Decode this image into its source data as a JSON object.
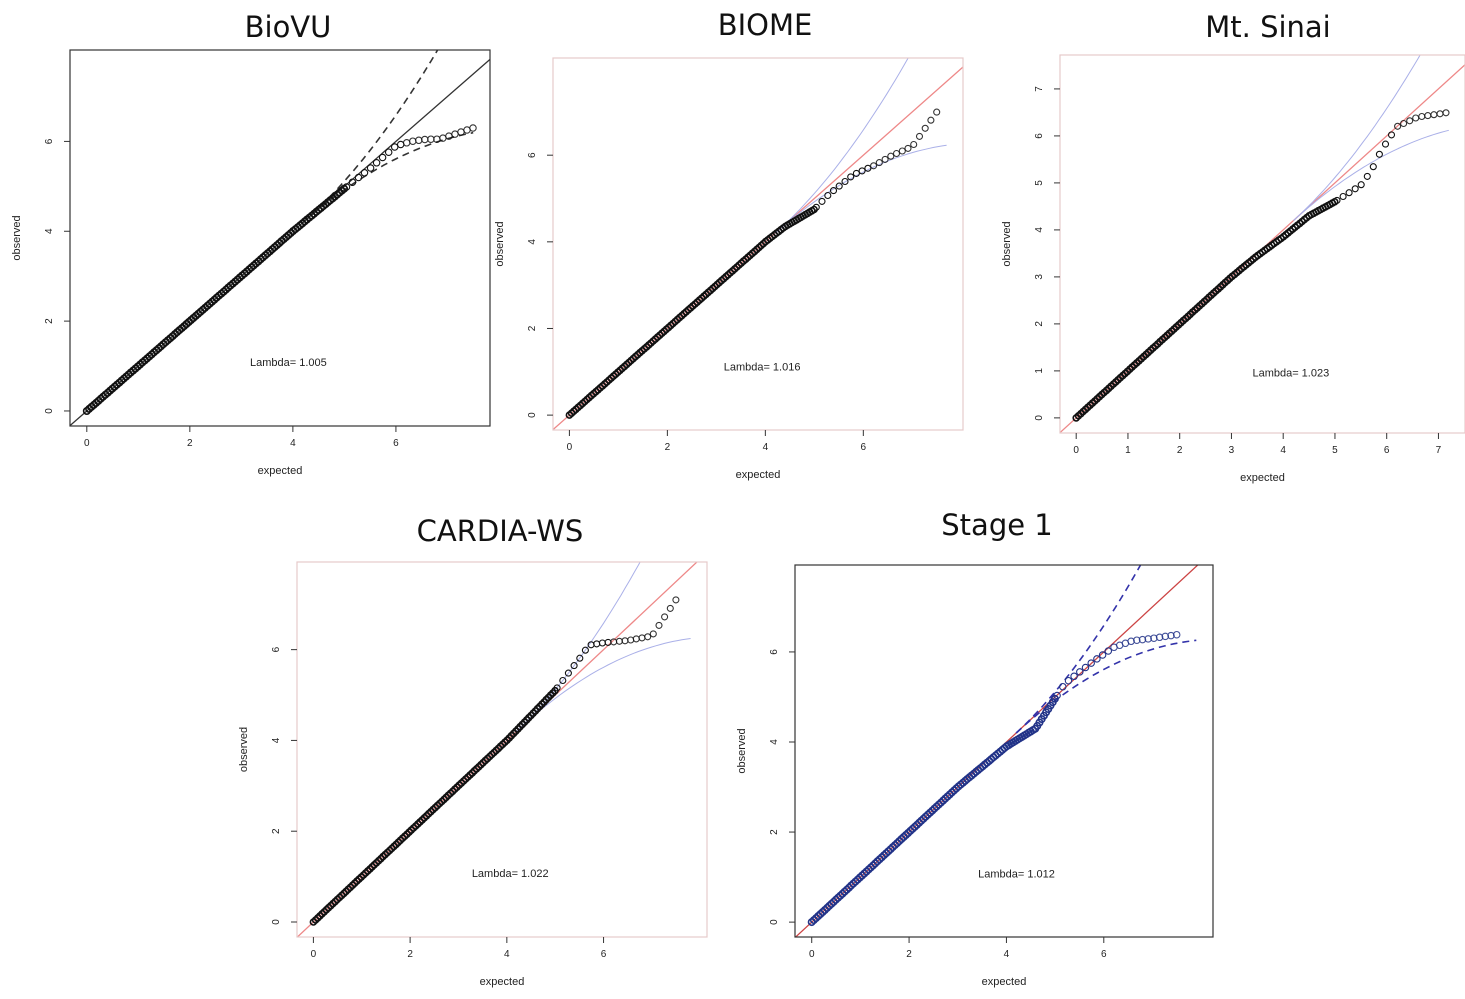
{
  "chart_data": [
    {
      "type": "scatter",
      "title": "BioVU",
      "xlabel": "expected",
      "ylabel": "observed",
      "xlim": [
        0,
        7.5
      ],
      "ylim": [
        0,
        7.7
      ],
      "xticks": [
        "0",
        "2",
        "4",
        "6"
      ],
      "yticks": [
        "0",
        "2",
        "4",
        "6"
      ],
      "annotation": "Lambda= 1.005",
      "reference_line": "y = x",
      "colors": {
        "frame": "#333333",
        "reference": "#333333",
        "band": "#333333",
        "points": "#111111"
      },
      "series": [
        {
          "x": [
            0,
            1,
            2,
            3,
            4,
            5,
            5.5,
            6.0,
            6.3,
            6.6,
            6.85,
            7.5
          ],
          "y": [
            0,
            1,
            2,
            3,
            4,
            4.95,
            5.4,
            5.9,
            6.0,
            6.05,
            6.05,
            6.3
          ]
        }
      ]
    },
    {
      "type": "scatter",
      "title": "BIOME",
      "xlabel": "expected",
      "ylabel": "observed",
      "xlim": [
        0,
        7.7
      ],
      "ylim": [
        0,
        7.9
      ],
      "xticks": [
        "0",
        "2",
        "4",
        "6"
      ],
      "yticks": [
        "0",
        "2",
        "4",
        "6"
      ],
      "annotation": "Lambda= 1.016",
      "reference_line": "y = x",
      "colors": {
        "frame": "#e7caca",
        "reference": "#ee8888",
        "band": "#aab0e8",
        "points": "#111111"
      },
      "series": [
        {
          "x": [
            0,
            1,
            2,
            3,
            4,
            4.4,
            5.0,
            5.3,
            5.8,
            6.2,
            6.6,
            7.0,
            7.5
          ],
          "y": [
            0,
            1,
            2,
            3,
            4,
            4.35,
            4.75,
            5.1,
            5.55,
            5.75,
            6.0,
            6.2,
            7.0
          ]
        }
      ]
    },
    {
      "type": "scatter",
      "title": "Mt. Sinai",
      "xlabel": "expected",
      "ylabel": "observed",
      "xlim": [
        0,
        7.2
      ],
      "ylim": [
        0,
        7.4
      ],
      "xticks": [
        "0",
        "1",
        "2",
        "3",
        "4",
        "5",
        "6",
        "7"
      ],
      "yticks": [
        "0",
        "1",
        "2",
        "3",
        "4",
        "5",
        "6",
        "7"
      ],
      "annotation": "Lambda= 1.023",
      "reference_line": "y = x",
      "colors": {
        "frame": "#e7caca",
        "reference": "#ee8888",
        "band": "#aab0e8",
        "points": "#111111"
      },
      "series": [
        {
          "x": [
            0,
            1,
            2,
            3,
            3.5,
            4.0,
            4.5,
            5.0,
            5.5,
            5.7,
            5.9,
            6.2,
            6.6,
            7.2
          ],
          "y": [
            0,
            1,
            2,
            3,
            3.45,
            3.85,
            4.3,
            4.6,
            4.95,
            5.25,
            5.7,
            6.2,
            6.4,
            6.5
          ]
        }
      ]
    },
    {
      "type": "scatter",
      "title": "CARDIA-WS",
      "xlabel": "expected",
      "ylabel": "observed",
      "xlim": [
        0,
        7.8
      ],
      "ylim": [
        0,
        7.6
      ],
      "xticks": [
        "0",
        "2",
        "4",
        "6"
      ],
      "yticks": [
        "0",
        "2",
        "4",
        "6"
      ],
      "annotation": "Lambda= 1.022",
      "reference_line": "y = x",
      "colors": {
        "frame": "#e7caca",
        "reference": "#ee8888",
        "band": "#aab0e8",
        "points": "#111111"
      },
      "series": [
        {
          "x": [
            0,
            1,
            2,
            3,
            4,
            5,
            5.5,
            5.7,
            6.0,
            6.5,
            7.0,
            7.5
          ],
          "y": [
            0,
            1,
            2,
            3,
            4,
            5.1,
            5.8,
            6.1,
            6.15,
            6.2,
            6.3,
            7.1
          ]
        }
      ]
    },
    {
      "type": "scatter",
      "title": "Stage 1",
      "xlabel": "expected",
      "ylabel": "observed",
      "xlim": [
        0,
        7.9
      ],
      "ylim": [
        0,
        7.6
      ],
      "xticks": [
        "0",
        "2",
        "4",
        "6"
      ],
      "yticks": [
        "0",
        "2",
        "4",
        "6"
      ],
      "annotation": "Lambda= 1.012",
      "reference_line": "y = x",
      "colors": {
        "frame": "#333333",
        "reference": "#cc4444",
        "band": "#3333aa",
        "points": "#223388"
      },
      "series": [
        {
          "x": [
            0,
            1,
            2,
            3,
            4,
            4.6,
            5.2,
            5.8,
            6.2,
            6.6,
            7.0,
            7.6
          ],
          "y": [
            0,
            1,
            2,
            3,
            3.9,
            4.3,
            5.3,
            5.8,
            6.1,
            6.25,
            6.3,
            6.4
          ]
        }
      ]
    }
  ]
}
